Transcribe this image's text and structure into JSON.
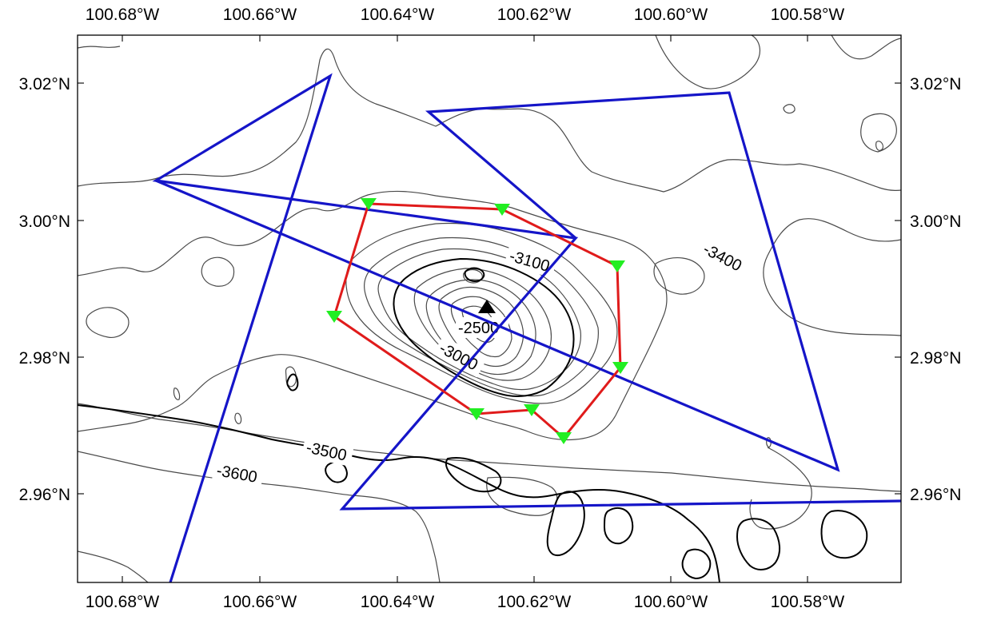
{
  "map": {
    "axes": {
      "lon_ticks": [
        "100.68°W",
        "100.66°W",
        "100.64°W",
        "100.62°W",
        "100.60°W",
        "100.58°W"
      ],
      "lat_ticks": [
        "3.02°N",
        "3.00°N",
        "2.98°N",
        "2.96°N"
      ]
    },
    "contour_labels": [
      "-2500",
      "-3000",
      "-3100",
      "-3400",
      "-3500",
      "-3600"
    ],
    "colors": {
      "survey_lines": "#1515c8",
      "obs_polygon": "#e01b1b",
      "obs_stations": "#22ee22",
      "summit_marker": "#000000",
      "contours": "#4a4a4a",
      "major_contours": "#000000"
    },
    "markers": {
      "stations_shape": "inverted-triangle",
      "summit_shape": "triangle"
    }
  }
}
